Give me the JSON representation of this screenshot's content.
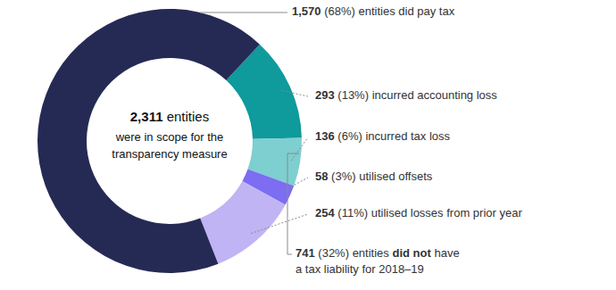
{
  "chart_data": {
    "type": "donut",
    "categories": [
      "incurred accounting loss",
      "incurred tax loss",
      "utilised offsets",
      "utilised losses from prior year",
      "entities did pay tax"
    ],
    "values": [
      293,
      136,
      58,
      254,
      1570
    ],
    "value_labels": [
      "293",
      "136",
      "58",
      "254",
      "1,570"
    ],
    "percent_labels": [
      "(13%)",
      "(6%)",
      "(3%)",
      "(11%)",
      "(68%)"
    ],
    "colors": [
      "#0f9a9b",
      "#7dcfd0",
      "#7c6df2",
      "#c0b4f4",
      "#252a55"
    ],
    "center_label": {
      "label": "2,311",
      "text": "entities",
      "lines": [
        "were in scope for the",
        "transparency measure"
      ]
    },
    "group_label": {
      "label": "741",
      "percent_label": "(32%)",
      "text": "entities",
      "bold": "did not",
      "suffix": "have",
      "line2": "a tax liability for 2018–19"
    }
  }
}
